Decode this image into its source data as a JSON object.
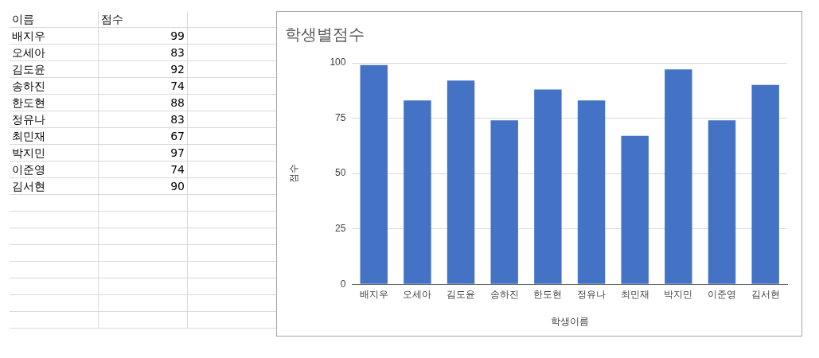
{
  "chart_data": [
    {
      "type": "other",
      "categories": [
        "배지우",
        "오세아",
        "김도윤",
        "송하진",
        "한도현",
        "정유나",
        "최민재",
        "박지민",
        "이준영",
        "김서현"
      ],
      "values": [
        99,
        83,
        92,
        74,
        88,
        83,
        67,
        97,
        74,
        90
      ],
      "value_labels": [
        "99",
        "83",
        "92",
        "74",
        "88",
        "83",
        "67",
        "97",
        "74",
        "90"
      ],
      "annotations": [
        "이름",
        "점수"
      ]
    },
    {
      "type": "bar",
      "title": "학생별점수",
      "xlabel": "학생이름",
      "ylabel": "점수",
      "categories": [
        "배지우",
        "오세아",
        "김도윤",
        "송하진",
        "한도현",
        "정유나",
        "최민재",
        "박지민",
        "이준영",
        "김서현"
      ],
      "values": [
        99,
        83,
        92,
        74,
        88,
        83,
        67,
        97,
        74,
        90
      ],
      "color": "#4472c4",
      "ylim": [
        0,
        100
      ],
      "yticks": [
        0,
        25,
        50,
        75,
        100
      ],
      "grid": "y"
    }
  ]
}
